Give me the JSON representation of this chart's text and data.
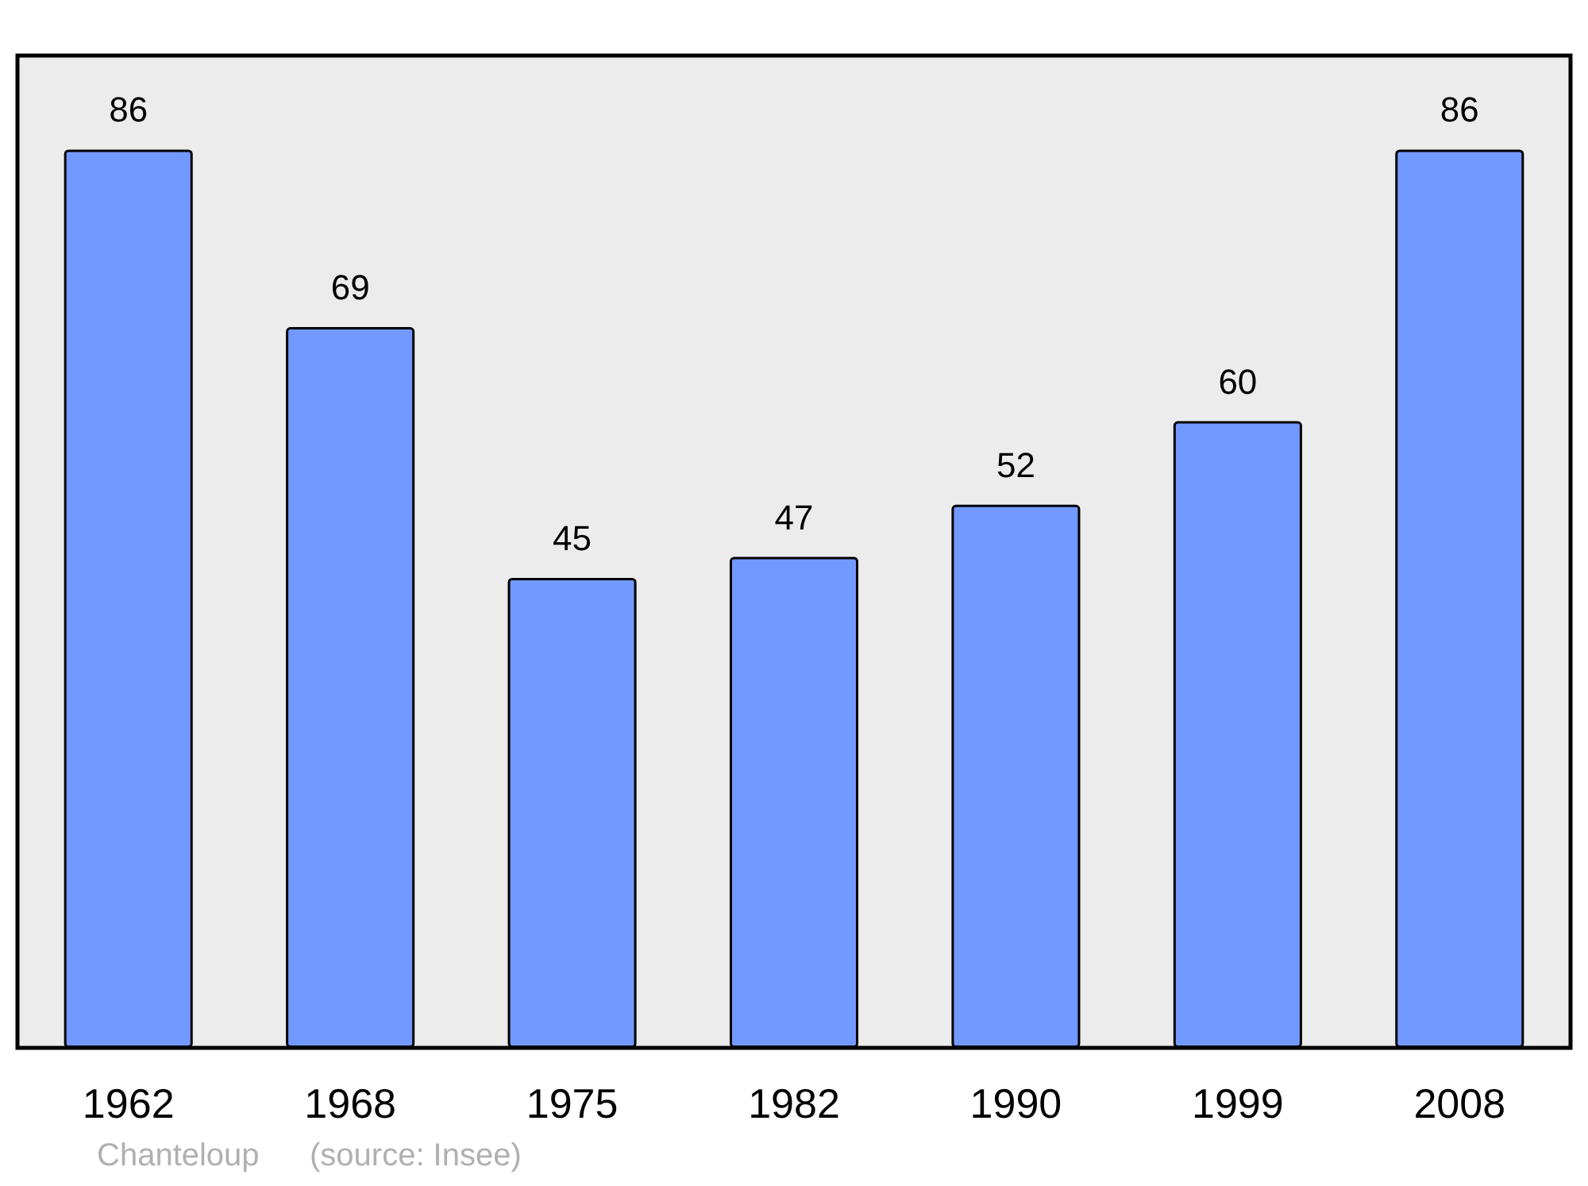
{
  "chart_data": {
    "type": "bar",
    "categories": [
      "1962",
      "1968",
      "1975",
      "1982",
      "1990",
      "1999",
      "2008"
    ],
    "values": [
      86,
      69,
      45,
      47,
      52,
      60,
      86
    ],
    "color": "#7299ff",
    "ylim": [
      0,
      95
    ],
    "data_labels": true,
    "tick_labels": "x",
    "annotations": [
      "Chanteloup",
      "(source: Insee)"
    ]
  }
}
